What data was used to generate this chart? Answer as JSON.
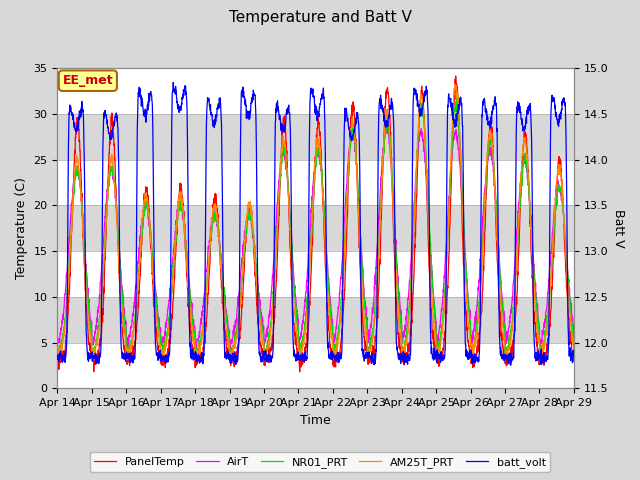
{
  "title": "Temperature and Batt V",
  "ylabel_left": "Temperature (C)",
  "ylabel_right": "Batt V",
  "xlabel": "Time",
  "xlim_labels": [
    "Apr 14",
    "Apr 15",
    "Apr 16",
    "Apr 17",
    "Apr 18",
    "Apr 19",
    "Apr 20",
    "Apr 21",
    "Apr 22",
    "Apr 23",
    "Apr 24",
    "Apr 25",
    "Apr 26",
    "Apr 27",
    "Apr 28",
    "Apr 29"
  ],
  "ylim_left": [
    0,
    35
  ],
  "ylim_right": [
    11.5,
    15.0
  ],
  "yticks_left": [
    0,
    5,
    10,
    15,
    20,
    25,
    30,
    35
  ],
  "yticks_right": [
    11.5,
    12.0,
    12.5,
    13.0,
    13.5,
    14.0,
    14.5,
    15.0
  ],
  "annotation_text": "EE_met",
  "fig_bg_color": "#d8d8d8",
  "plot_bg_color": "#e8e8e8",
  "band_color_light": "#d0d0d0",
  "band_color_dark": "#e8e8e8",
  "series_colors": {
    "PanelTemp": "#ff0000",
    "AirT": "#ff00ff",
    "NR01_PRT": "#00dd00",
    "AM25T_PRT": "#ff8800",
    "batt_volt": "#0000ff"
  },
  "legend_entries": [
    "PanelTemp",
    "AirT",
    "NR01_PRT",
    "AM25T_PRT",
    "batt_volt"
  ]
}
